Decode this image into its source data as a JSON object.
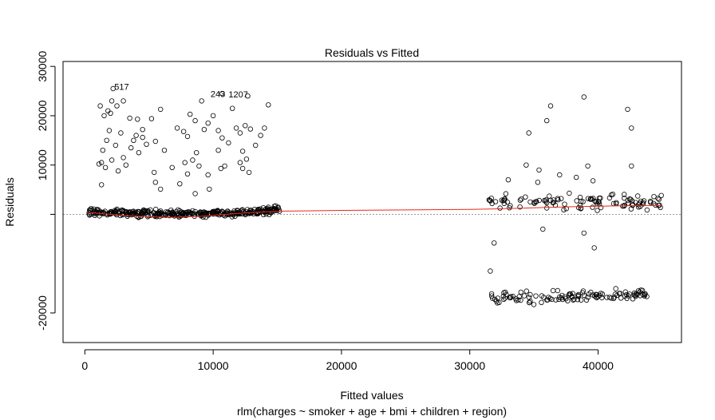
{
  "chart_data": {
    "type": "scatter",
    "title": "Residuals vs Fitted",
    "xlabel": "Fitted values",
    "ylabel": "Residuals",
    "subtitle": "rlm(charges ~ smoker + age + bmi + children + region)",
    "xlim": [
      -1700,
      46500
    ],
    "ylim": [
      -26000,
      31000
    ],
    "x_ticks": [
      0,
      10000,
      20000,
      30000,
      40000
    ],
    "y_ticks": [
      -20000,
      0,
      10000,
      20000,
      30000
    ],
    "y_tick_labels": [
      "-20000",
      "",
      "10000",
      "20000",
      "30000"
    ],
    "x_tick_labels": [
      "0",
      "10000",
      "20000",
      "30000",
      "40000"
    ],
    "zero_reference_line": 0,
    "colors": {
      "points": "#000000",
      "smooth": "#e8291c",
      "reference": "#9a9a9a"
    },
    "annotations": [
      {
        "label": "517",
        "x": 2300,
        "y": 25700
      },
      {
        "label": "243",
        "x": 9800,
        "y": 24300
      },
      {
        "label": "1207",
        "x": 11200,
        "y": 24200
      }
    ],
    "smooth_line": {
      "x": [
        300,
        1500,
        3000,
        5000,
        7000,
        9000,
        11000,
        12500,
        14000,
        15500,
        20000,
        25000,
        30000,
        32000,
        34000,
        36000,
        38000,
        40000,
        42000,
        45000
      ],
      "y": [
        400,
        100,
        -200,
        -500,
        -600,
        -400,
        0,
        300,
        500,
        650,
        800,
        900,
        1000,
        1100,
        1250,
        1400,
        1550,
        1650,
        1750,
        1800
      ]
    },
    "outlier_points": [
      {
        "x": 1200,
        "y": 22000
      },
      {
        "x": 1800,
        "y": 21000
      },
      {
        "x": 2100,
        "y": 23000
      },
      {
        "x": 2500,
        "y": 22000
      },
      {
        "x": 3000,
        "y": 23000
      },
      {
        "x": 2200,
        "y": 25500
      },
      {
        "x": 1500,
        "y": 20000
      },
      {
        "x": 2000,
        "y": 20500
      },
      {
        "x": 3500,
        "y": 19500
      },
      {
        "x": 4100,
        "y": 19300
      },
      {
        "x": 5200,
        "y": 19400
      },
      {
        "x": 5900,
        "y": 21300
      },
      {
        "x": 1900,
        "y": 17000
      },
      {
        "x": 2800,
        "y": 16500
      },
      {
        "x": 4000,
        "y": 16000
      },
      {
        "x": 4500,
        "y": 15600
      },
      {
        "x": 3800,
        "y": 15000
      },
      {
        "x": 5500,
        "y": 14800
      },
      {
        "x": 1700,
        "y": 15000
      },
      {
        "x": 1400,
        "y": 13000
      },
      {
        "x": 2400,
        "y": 14000
      },
      {
        "x": 3600,
        "y": 13500
      },
      {
        "x": 4200,
        "y": 12500
      },
      {
        "x": 4800,
        "y": 14200
      },
      {
        "x": 1100,
        "y": 10200
      },
      {
        "x": 1300,
        "y": 10500
      },
      {
        "x": 1600,
        "y": 9500
      },
      {
        "x": 2100,
        "y": 11000
      },
      {
        "x": 2600,
        "y": 8800
      },
      {
        "x": 3000,
        "y": 11500
      },
      {
        "x": 1300,
        "y": 6000
      },
      {
        "x": 3200,
        "y": 10000
      },
      {
        "x": 5400,
        "y": 8500
      },
      {
        "x": 5500,
        "y": 6500
      },
      {
        "x": 5900,
        "y": 5100
      },
      {
        "x": 6200,
        "y": 13000
      },
      {
        "x": 7200,
        "y": 17500
      },
      {
        "x": 7700,
        "y": 16800
      },
      {
        "x": 8200,
        "y": 20300
      },
      {
        "x": 8600,
        "y": 19000
      },
      {
        "x": 8700,
        "y": 12500
      },
      {
        "x": 9100,
        "y": 23000
      },
      {
        "x": 8000,
        "y": 15800
      },
      {
        "x": 7800,
        "y": 10500
      },
      {
        "x": 8400,
        "y": 11000
      },
      {
        "x": 8900,
        "y": 9800
      },
      {
        "x": 9300,
        "y": 17200
      },
      {
        "x": 9600,
        "y": 18500
      },
      {
        "x": 10000,
        "y": 20000
      },
      {
        "x": 10400,
        "y": 17000
      },
      {
        "x": 10700,
        "y": 15500
      },
      {
        "x": 10400,
        "y": 13000
      },
      {
        "x": 10900,
        "y": 9800
      },
      {
        "x": 10600,
        "y": 9300
      },
      {
        "x": 11200,
        "y": 14500
      },
      {
        "x": 11500,
        "y": 21500
      },
      {
        "x": 11800,
        "y": 17500
      },
      {
        "x": 12100,
        "y": 16500
      },
      {
        "x": 12500,
        "y": 18000
      },
      {
        "x": 12900,
        "y": 17300
      },
      {
        "x": 12300,
        "y": 12800
      },
      {
        "x": 12600,
        "y": 11200
      },
      {
        "x": 12100,
        "y": 10500
      },
      {
        "x": 12300,
        "y": 9300
      },
      {
        "x": 12800,
        "y": 8500
      },
      {
        "x": 13300,
        "y": 14000
      },
      {
        "x": 13700,
        "y": 16000
      },
      {
        "x": 14000,
        "y": 17500
      },
      {
        "x": 14300,
        "y": 22200
      },
      {
        "x": 12700,
        "y": 24000
      },
      {
        "x": 10700,
        "y": 24500
      },
      {
        "x": 9600,
        "y": 8000
      },
      {
        "x": 7400,
        "y": 6200
      },
      {
        "x": 9700,
        "y": 5100
      },
      {
        "x": 8600,
        "y": 4200
      },
      {
        "x": 8000,
        "y": 8200
      },
      {
        "x": 6800,
        "y": 9500
      },
      {
        "x": 4500,
        "y": 17200
      },
      {
        "x": 34600,
        "y": 16500
      },
      {
        "x": 35300,
        "y": 6500
      },
      {
        "x": 35400,
        "y": 9000
      },
      {
        "x": 36000,
        "y": 19000
      },
      {
        "x": 36300,
        "y": 22000
      },
      {
        "x": 37000,
        "y": 8000
      },
      {
        "x": 38300,
        "y": 7500
      },
      {
        "x": 38900,
        "y": 23800
      },
      {
        "x": 39200,
        "y": 9800
      },
      {
        "x": 39600,
        "y": 6800
      },
      {
        "x": 42300,
        "y": 21300
      },
      {
        "x": 42600,
        "y": 17500
      },
      {
        "x": 42600,
        "y": 9800
      },
      {
        "x": 34400,
        "y": 10000
      },
      {
        "x": 33000,
        "y": 7000
      },
      {
        "x": 35700,
        "y": -3000
      },
      {
        "x": 38900,
        "y": -3800
      },
      {
        "x": 39700,
        "y": -6800
      },
      {
        "x": 31900,
        "y": -5800
      },
      {
        "x": 31600,
        "y": -11500
      }
    ],
    "clusters": [
      {
        "name": "",
        "x_from": 300,
        "x_to": 15200,
        "center_from": 600,
        "center_mid": -600,
        "center_to": 1000,
        "spread": 700,
        "count": 360
      },
      {
        "name": "",
        "x_from": 31500,
        "x_to": 45000,
        "center_from": 2500,
        "center_mid": 2500,
        "center_to": 2500,
        "spread": 1600,
        "count": 110
      },
      {
        "name": "",
        "x_from": 31500,
        "x_to": 44000,
        "center_from": -17000,
        "center_mid": -17300,
        "center_to": -16000,
        "spread": 1200,
        "count": 120
      }
    ]
  }
}
